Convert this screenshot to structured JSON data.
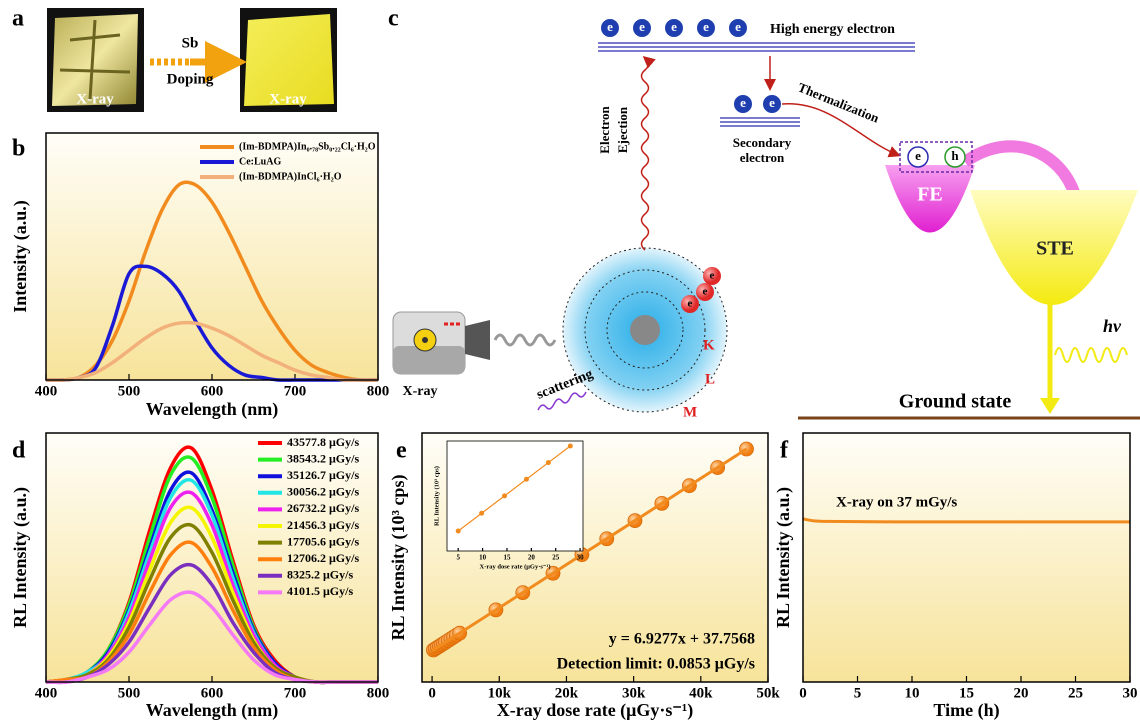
{
  "panel_labels": [
    "a",
    "b",
    "c",
    "d",
    "e",
    "f"
  ],
  "panel_a": {
    "dopant": "Sb",
    "process": "Doping",
    "left_caption": "X-ray",
    "right_caption": "X-ray"
  },
  "panel_c": {
    "high_energy_electron": "High energy electron",
    "secondary_electron": [
      "Secondary",
      "electron"
    ],
    "thermalization": "Thermalization",
    "electron_ejection": [
      "Electron",
      "Ejection"
    ],
    "free_exciton": "FE",
    "self_trapped_exciton": "STE",
    "photon": "hν",
    "ground_state": "Ground state",
    "source": "X-ray",
    "scattering": "scattering",
    "shells": [
      "K",
      "L",
      "M"
    ],
    "electron": "e",
    "hole": "h"
  },
  "chart_data": [
    {
      "type": "line",
      "x_label": "Wavelength (nm)",
      "y_label": "Intensity (a.u.)",
      "x": [
        400,
        420,
        440,
        460,
        480,
        500,
        520,
        540,
        560,
        580,
        600,
        620,
        640,
        660,
        680,
        700,
        720,
        740,
        760,
        780,
        800
      ],
      "xlim": [
        400,
        800
      ],
      "xticks": [
        400,
        500,
        600,
        700,
        800
      ],
      "ylim": [
        0,
        1
      ],
      "series": [
        {
          "name": "(Im-BDMPA)In₀.₇₈Sb₀.₂₂Cl₆·H₂O",
          "color": "#f28b1e",
          "values": [
            0,
            0,
            0.01,
            0.06,
            0.16,
            0.32,
            0.52,
            0.69,
            0.79,
            0.79,
            0.72,
            0.6,
            0.46,
            0.32,
            0.21,
            0.12,
            0.06,
            0.03,
            0.01,
            0,
            0
          ]
        },
        {
          "name": "Ce:LuAG",
          "color": "#1a1ad6",
          "values": [
            0,
            0,
            0.01,
            0.05,
            0.22,
            0.43,
            0.46,
            0.43,
            0.36,
            0.24,
            0.13,
            0.06,
            0.02,
            0.01,
            0,
            0,
            0,
            0,
            0,
            0,
            0
          ]
        },
        {
          "name": "(Im-BDMPA)InCl₆·H₂O",
          "color": "#f2b07a",
          "values": [
            0,
            0,
            0.01,
            0.03,
            0.07,
            0.12,
            0.17,
            0.21,
            0.23,
            0.23,
            0.21,
            0.18,
            0.14,
            0.1,
            0.07,
            0.04,
            0.02,
            0.01,
            0,
            0,
            0
          ]
        }
      ]
    },
    {
      "type": "line",
      "x_label": "Wavelength (nm)",
      "y_label": "RL Intensity (a.u.)",
      "x": [
        400,
        425,
        450,
        475,
        500,
        525,
        550,
        575,
        600,
        625,
        650,
        675,
        700,
        725,
        750,
        775,
        800
      ],
      "xlim": [
        400,
        800
      ],
      "xticks": [
        400,
        500,
        600,
        700,
        800
      ],
      "ylim": [
        0,
        1
      ],
      "series": [
        {
          "name": "43577.8 μGy/s",
          "color": "#ff0000",
          "values": [
            0,
            0.01,
            0.04,
            0.13,
            0.32,
            0.61,
            0.86,
            0.94,
            0.77,
            0.49,
            0.23,
            0.09,
            0.02,
            0,
            0,
            0,
            0
          ]
        },
        {
          "name": "38543.2 μGy/s",
          "color": "#22ee22",
          "values": [
            0,
            0.01,
            0.04,
            0.13,
            0.31,
            0.58,
            0.83,
            0.9,
            0.74,
            0.47,
            0.22,
            0.08,
            0.02,
            0,
            0,
            0,
            0
          ]
        },
        {
          "name": "35126.7 μGy/s",
          "color": "#1010dd",
          "values": [
            0,
            0.01,
            0.04,
            0.12,
            0.29,
            0.54,
            0.77,
            0.84,
            0.69,
            0.44,
            0.21,
            0.08,
            0.02,
            0,
            0,
            0,
            0
          ]
        },
        {
          "name": "30056.2 μGy/s",
          "color": "#22e5e5",
          "values": [
            0,
            0.01,
            0.04,
            0.11,
            0.28,
            0.52,
            0.74,
            0.81,
            0.67,
            0.42,
            0.2,
            0.07,
            0.02,
            0,
            0,
            0,
            0
          ]
        },
        {
          "name": "26732.2 μGy/s",
          "color": "#ee22ee",
          "values": [
            0,
            0.01,
            0.03,
            0.11,
            0.26,
            0.49,
            0.7,
            0.76,
            0.63,
            0.39,
            0.19,
            0.07,
            0.02,
            0,
            0,
            0,
            0
          ]
        },
        {
          "name": "21456.3 μGy/s",
          "color": "#f5f500",
          "values": [
            0,
            0.01,
            0.03,
            0.1,
            0.24,
            0.45,
            0.64,
            0.7,
            0.58,
            0.36,
            0.17,
            0.06,
            0.02,
            0,
            0,
            0,
            0
          ]
        },
        {
          "name": "17705.6 μGy/s",
          "color": "#808000",
          "values": [
            0,
            0.01,
            0.03,
            0.09,
            0.22,
            0.41,
            0.58,
            0.63,
            0.52,
            0.33,
            0.16,
            0.06,
            0.02,
            0,
            0,
            0,
            0
          ]
        },
        {
          "name": "12706.2 μGy/s",
          "color": "#ff7f0e",
          "values": [
            0,
            0.01,
            0.02,
            0.08,
            0.19,
            0.36,
            0.51,
            0.56,
            0.46,
            0.29,
            0.14,
            0.05,
            0.01,
            0,
            0,
            0,
            0
          ]
        },
        {
          "name": "8325.2 μGy/s",
          "color": "#7a2fc0",
          "values": [
            0,
            0,
            0.02,
            0.07,
            0.16,
            0.3,
            0.43,
            0.47,
            0.39,
            0.24,
            0.12,
            0.04,
            0.01,
            0,
            0,
            0,
            0
          ]
        },
        {
          "name": "4101.5 μGy/s",
          "color": "#f57af5",
          "values": [
            0,
            0,
            0.02,
            0.05,
            0.12,
            0.23,
            0.33,
            0.36,
            0.3,
            0.19,
            0.09,
            0.03,
            0.01,
            0,
            0,
            0,
            0
          ]
        }
      ]
    },
    {
      "type": "scatter",
      "x_label": "X-ray dose rate (μGy·s⁻¹)",
      "y_label": "RL Intensity (10³ cps)",
      "equation": "y = 6.9277x + 37.7568",
      "detection_limit": "Detection limit: 0.0853 μGy/s",
      "xlim": [
        -1500,
        50000
      ],
      "xticks": [
        0,
        {
          "value": 10000,
          "label": "10k"
        },
        {
          "value": 20000,
          "label": "20k"
        },
        {
          "value": 30000,
          "label": "30k"
        },
        {
          "value": 40000,
          "label": "40k"
        },
        {
          "value": 50000,
          "label": "50k"
        }
      ],
      "ylim": [
        -50,
        350
      ],
      "series": [
        {
          "color": "#f28b1e",
          "x": [
            200,
            500,
            800,
            1100,
            1400,
            1700,
            2000,
            2400,
            2800,
            3200,
            3600,
            4100,
            9500,
            13500,
            18000,
            22300,
            26000,
            30200,
            34200,
            38300,
            42500,
            46800
          ],
          "values": [
            1.42,
            3.5,
            5.58,
            7.66,
            9.74,
            11.81,
            13.89,
            16.66,
            19.43,
            22.21,
            24.98,
            28.44,
            65.85,
            93.56,
            124.74,
            154.52,
            180.16,
            209.25,
            236.97,
            265.36,
            294.46,
            324.26
          ]
        }
      ],
      "fit_line": {
        "x": [
          0,
          46800
        ],
        "values": [
          0.04,
          324.26
        ]
      }
    },
    {
      "type": "scatter",
      "x_label": "X-ray dose rate (μGy·s⁻¹)",
      "y_label": "RL Intensity (10³ cps)",
      "xlim": [
        2.7,
        30.6
      ],
      "xticks": [
        5,
        10,
        15,
        20,
        25,
        30
      ],
      "ylim": [
        0.035,
        0.241
      ],
      "connect": true,
      "series": [
        {
          "color": "#f28b1e",
          "x": [
            5,
            9.8,
            14.5,
            19,
            23.5,
            28
          ],
          "values": [
            0.0724,
            0.1057,
            0.1382,
            0.1694,
            0.2006,
            0.2317
          ]
        }
      ]
    },
    {
      "type": "line",
      "x_label": "Time (h)",
      "y_label": "RL Intensity (a.u.)",
      "annotation": "X-ray on 37 mGy/s",
      "x": [
        0,
        1,
        2,
        5,
        10,
        15,
        20,
        25,
        30
      ],
      "xlim": [
        0,
        30
      ],
      "xticks": [
        0,
        5,
        10,
        15,
        20,
        25,
        30
      ],
      "ylim": [
        0,
        1
      ],
      "series": [
        {
          "color": "#f28b1e",
          "values": [
            0.655,
            0.647,
            0.645,
            0.644,
            0.643,
            0.643,
            0.643,
            0.643,
            0.643
          ]
        }
      ]
    }
  ]
}
